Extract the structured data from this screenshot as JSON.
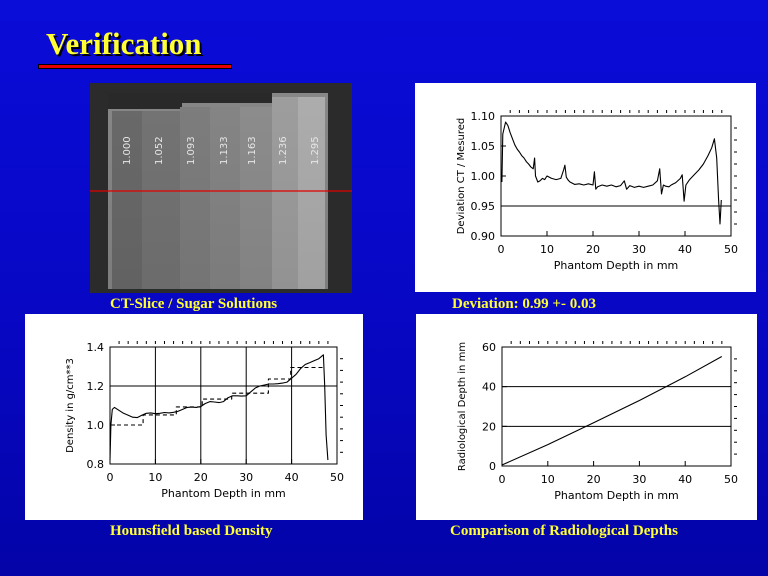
{
  "title": "Verification",
  "captions": {
    "ct": "CT-Slice / Sugar Solutions",
    "deviation": "Deviation: 0.99 +- 0.03",
    "density": "Hounsfield based Density",
    "depths": "Comparison of Radiological Depths"
  },
  "ct_labels": [
    "1.000",
    "1.052",
    "1.093",
    "1.133",
    "1.163",
    "1.236",
    "1.295"
  ],
  "colors": {
    "background": "#0707c4",
    "title": "#ffff33",
    "underline": "#e80000",
    "profile_line": "#e00000"
  },
  "chart_data": [
    {
      "id": "deviation",
      "type": "line",
      "title": "",
      "xlabel": "Phantom Depth in mm",
      "ylabel": "Deviation CT / Mesured",
      "xlim": [
        0,
        50
      ],
      "ylim": [
        0.9,
        1.1
      ],
      "xticks": [
        0,
        10,
        20,
        30,
        40,
        50
      ],
      "yticks": [
        0.9,
        0.95,
        1.0,
        1.05,
        1.1
      ],
      "ytick_labels": [
        "0.90",
        "0.95",
        "1.00",
        "1.05",
        "1.10"
      ],
      "hlines": [
        0.95
      ],
      "grid": false,
      "series": [
        {
          "x": [
            0.2,
            0.4,
            0.7,
            1.0,
            1.5,
            2.0,
            2.5,
            3.0,
            3.5,
            4.0,
            4.5,
            5.0,
            5.5,
            6.0,
            6.5,
            7.0,
            7.3,
            7.5,
            8.0,
            8.5,
            9.0,
            9.5,
            10.0,
            11.0,
            12.0,
            13.0,
            13.6,
            13.9,
            14.2,
            14.6,
            15.0,
            16.0,
            17.0,
            18.0,
            19.0,
            20.0,
            20.3,
            20.6,
            21.0,
            22.0,
            23.0,
            24.0,
            25.0,
            26.0,
            26.8,
            27.3,
            28.0,
            29.0,
            30.0,
            31.0,
            32.0,
            33.0,
            34.0,
            34.5,
            34.9,
            35.3,
            35.8,
            36.5,
            37.0,
            38.0,
            39.0,
            39.4,
            39.8,
            40.2,
            41.0,
            42.0,
            43.0,
            44.0,
            45.0,
            45.8,
            46.4,
            46.9,
            47.3,
            47.6,
            47.9
          ],
          "y": [
            0.99,
            1.07,
            1.08,
            1.09,
            1.084,
            1.072,
            1.062,
            1.052,
            1.045,
            1.04,
            1.034,
            1.03,
            1.024,
            1.02,
            1.015,
            1.012,
            1.03,
            1.0,
            0.99,
            0.992,
            0.996,
            0.994,
            1.0,
            0.996,
            0.994,
            0.996,
            1.01,
            1.018,
            0.998,
            0.993,
            0.99,
            0.986,
            0.987,
            0.985,
            0.987,
            0.985,
            1.007,
            0.978,
            0.982,
            0.985,
            0.983,
            0.985,
            0.982,
            0.984,
            0.992,
            0.978,
            0.984,
            0.981,
            0.983,
            0.981,
            0.983,
            0.985,
            0.992,
            1.012,
            0.97,
            0.985,
            0.983,
            0.982,
            0.985,
            0.989,
            0.996,
            1.002,
            0.958,
            0.985,
            0.994,
            1.002,
            1.01,
            1.02,
            1.034,
            1.047,
            1.062,
            1.03,
            0.96,
            0.92,
            0.96
          ]
        }
      ]
    },
    {
      "id": "density",
      "type": "line",
      "title": "",
      "xlabel": "Phantom Depth in mm",
      "ylabel": "Density in g/cm**3",
      "xlim": [
        0,
        50
      ],
      "ylim": [
        0.8,
        1.4
      ],
      "xticks": [
        0,
        10,
        20,
        30,
        40,
        50
      ],
      "yticks": [
        0.8,
        1.0,
        1.2,
        1.4
      ],
      "ytick_labels": [
        "0.8",
        "1.0",
        "1.2",
        "1.4"
      ],
      "hlines": [
        1.2
      ],
      "vlines": [
        10,
        20,
        30,
        40
      ],
      "grid": false,
      "series": [
        {
          "style": "solid",
          "x": [
            0.0,
            0.2,
            0.5,
            1.0,
            2.0,
            3.0,
            4.0,
            5.0,
            6.0,
            7.0,
            8.0,
            9.0,
            10.0,
            11.0,
            12.0,
            13.0,
            14.0,
            15.0,
            16.0,
            17.0,
            18.0,
            19.0,
            20.0,
            21.0,
            22.0,
            23.0,
            24.0,
            25.0,
            26.0,
            27.0,
            28.0,
            29.0,
            30.0,
            31.0,
            32.0,
            33.0,
            34.0,
            35.0,
            36.0,
            37.0,
            38.0,
            39.0,
            40.0,
            41.0,
            42.0,
            43.0,
            44.0,
            45.0,
            46.0,
            47.0,
            47.3,
            47.6,
            48.0
          ],
          "y": [
            0.82,
            1.0,
            1.08,
            1.09,
            1.075,
            1.06,
            1.05,
            1.04,
            1.038,
            1.05,
            1.06,
            1.062,
            1.058,
            1.06,
            1.064,
            1.062,
            1.065,
            1.07,
            1.08,
            1.09,
            1.092,
            1.09,
            1.095,
            1.11,
            1.12,
            1.118,
            1.115,
            1.12,
            1.14,
            1.15,
            1.15,
            1.148,
            1.15,
            1.17,
            1.19,
            1.2,
            1.205,
            1.21,
            1.21,
            1.212,
            1.215,
            1.22,
            1.24,
            1.26,
            1.29,
            1.31,
            1.32,
            1.33,
            1.34,
            1.36,
            1.2,
            0.95,
            0.82
          ]
        },
        {
          "style": "dashed",
          "x": [
            0,
            7.3,
            7.3,
            14.6,
            14.6,
            20.3,
            20.3,
            26.8,
            26.8,
            34.9,
            34.9,
            39.8,
            39.8,
            47.3
          ],
          "y": [
            1.0,
            1.0,
            1.052,
            1.052,
            1.093,
            1.093,
            1.133,
            1.133,
            1.163,
            1.163,
            1.236,
            1.236,
            1.295,
            1.295
          ]
        }
      ]
    },
    {
      "id": "depths",
      "type": "line",
      "title": "",
      "xlabel": "Phantom Depth in mm",
      "ylabel": "Radiological Depth in mm",
      "xlim": [
        0,
        50
      ],
      "ylim": [
        0,
        60
      ],
      "xticks": [
        0,
        10,
        20,
        30,
        40,
        50
      ],
      "yticks": [
        0,
        20,
        40,
        60
      ],
      "ytick_labels": [
        "0",
        "20",
        "40",
        "60"
      ],
      "hlines": [
        20,
        40
      ],
      "grid": false,
      "series": [
        {
          "x": [
            0,
            10,
            20,
            30,
            40,
            48
          ],
          "y": [
            0.5,
            10.8,
            21.8,
            33.0,
            45.0,
            55.2
          ]
        }
      ]
    }
  ]
}
